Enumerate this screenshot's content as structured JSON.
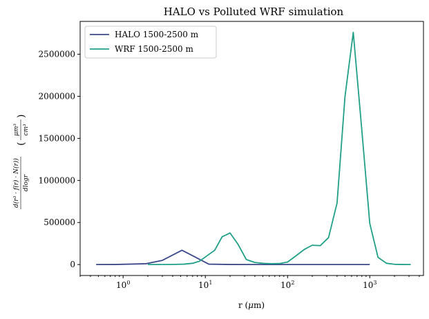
{
  "chart_data": {
    "type": "line",
    "title": "HALO vs Polluted WRF simulation",
    "xlabel": "r ($\\mu$m)",
    "xlabel_parts": [
      "r (",
      "μ",
      "m)"
    ],
    "ylabel": "d(r^3 · f(r) · N(r)) / dlogr  (μm^3 / cm^3)",
    "xscale": "log",
    "xlim": [
      0.3,
      4500
    ],
    "ylim": [
      -130000,
      2890000
    ],
    "x_ticks": [
      1,
      10,
      100,
      1000
    ],
    "x_tick_labels": [
      {
        "base": "10",
        "exp": "0"
      },
      {
        "base": "10",
        "exp": "1"
      },
      {
        "base": "10",
        "exp": "2"
      },
      {
        "base": "10",
        "exp": "3"
      }
    ],
    "y_ticks": [
      0,
      500000,
      1000000,
      1500000,
      2000000,
      2500000
    ],
    "y_tick_labels": [
      "0",
      "500000",
      "1000000",
      "1500000",
      "2000000",
      "2500000"
    ],
    "grid": false,
    "legend_position": "upper-left",
    "series": [
      {
        "name": "HALO 1500-2500 m",
        "color": "#3b4888",
        "x": [
          0.47,
          0.8,
          1.9,
          3.0,
          5.2,
          7.5,
          11,
          20,
          40,
          100,
          300,
          1000
        ],
        "y": [
          0,
          1000,
          10000,
          50000,
          170000,
          90000,
          5000,
          1000,
          500,
          300,
          200,
          100
        ]
      },
      {
        "name": "WRF 1500-2500 m",
        "color": "#1f9f88",
        "x": [
          2.0,
          2.6,
          4.0,
          5.5,
          7.0,
          8.5,
          10.0,
          13.0,
          16.0,
          20.0,
          25.0,
          31.5,
          40.0,
          50.0,
          63.0,
          80.0,
          100.0,
          125.0,
          160.0,
          200.0,
          250.0,
          315.0,
          400.0,
          500.0,
          630.0,
          800.0,
          1000.0,
          1260.0,
          1600.0,
          2000.0,
          2500.0,
          3150.0
        ],
        "y": [
          0,
          500,
          1500,
          5000,
          15000,
          40000,
          90000,
          170000,
          330000,
          375000,
          240000,
          60000,
          25000,
          15000,
          10000,
          12000,
          30000,
          100000,
          180000,
          230000,
          225000,
          320000,
          730000,
          2000000,
          2760000,
          1600000,
          490000,
          85000,
          15000,
          3000,
          1000,
          500
        ]
      }
    ]
  }
}
